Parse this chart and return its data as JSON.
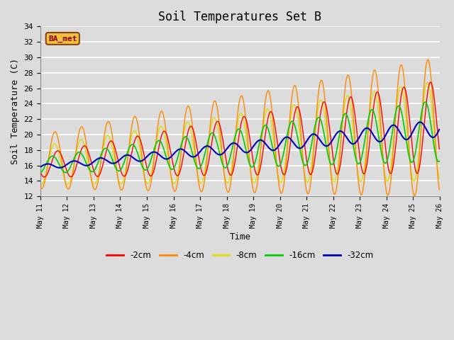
{
  "title": "Soil Temperatures Set B",
  "xlabel": "Time",
  "ylabel": "Soil Temperature (C)",
  "ylim": [
    12,
    34
  ],
  "yticks": [
    12,
    14,
    16,
    18,
    20,
    22,
    24,
    26,
    28,
    30,
    32,
    34
  ],
  "plot_bg_color": "#dcdcdc",
  "grid_color": "#ffffff",
  "legend_label": "BA_met",
  "legend_box_facecolor": "#f0c040",
  "legend_box_edgecolor": "#8b4513",
  "legend_text_color": "#8b0000",
  "series_colors": {
    "-2cm": "#ff0000",
    "-4cm": "#ff8800",
    "-8cm": "#dddd00",
    "-16cm": "#00cc00",
    "-32cm": "#0000bb"
  },
  "start_day": 11,
  "end_day": 26,
  "n_points_per_day": 48
}
